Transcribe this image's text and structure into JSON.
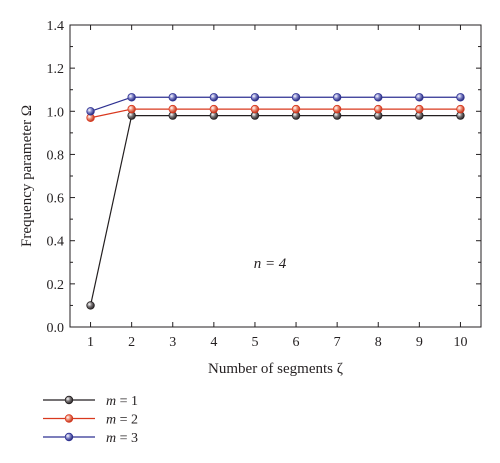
{
  "chart_data": {
    "type": "line",
    "x": [
      1,
      2,
      3,
      4,
      5,
      6,
      7,
      8,
      9,
      10
    ],
    "xlim": [
      0.5,
      10.5
    ],
    "ylim": [
      0.0,
      1.4
    ],
    "xticks": [
      "1",
      "2",
      "3",
      "4",
      "5",
      "6",
      "7",
      "8",
      "9",
      "10"
    ],
    "yticks": [
      "0.0",
      "0.2",
      "0.4",
      "0.6",
      "0.8",
      "1.0",
      "1.2",
      "1.4"
    ],
    "xlabel": "Number of segments ζ",
    "ylabel": "Frequency parameter Ω",
    "annotation": "n = 4",
    "legend_position": "bottom-left, below plot",
    "grid": false,
    "series": [
      {
        "name": "m = 1",
        "color": "#231f20",
        "values": [
          0.1,
          0.98,
          0.98,
          0.98,
          0.98,
          0.98,
          0.98,
          0.98,
          0.98,
          0.98
        ]
      },
      {
        "name": "m = 2",
        "color": "#d9381e",
        "values": [
          0.97,
          1.01,
          1.01,
          1.01,
          1.01,
          1.01,
          1.01,
          1.01,
          1.01,
          1.01
        ]
      },
      {
        "name": "m = 3",
        "color": "#2e3192",
        "values": [
          1.0,
          1.065,
          1.065,
          1.065,
          1.065,
          1.065,
          1.065,
          1.065,
          1.065,
          1.065
        ]
      }
    ]
  }
}
